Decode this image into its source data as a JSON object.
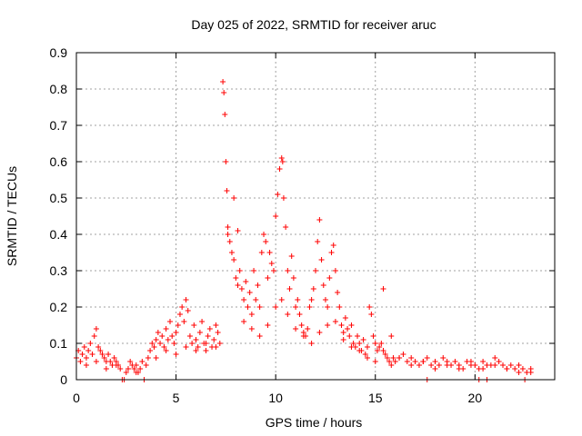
{
  "chart_data": {
    "type": "scatter",
    "title": "Day 025 of 2022, SRMTID for receiver aruc",
    "xlabel": "GPS time / hours",
    "ylabel": "SRMTID / TECUs",
    "xlim": [
      0,
      24
    ],
    "ylim": [
      0,
      0.9
    ],
    "xticks": [
      0,
      5,
      10,
      15,
      20
    ],
    "yticks": [
      0,
      0.1,
      0.2,
      0.3,
      0.4,
      0.5,
      0.6,
      0.7,
      0.8,
      0.9
    ],
    "xtick_labels": [
      "0",
      "5",
      "10",
      "15",
      "20"
    ],
    "ytick_labels": [
      "0",
      "0.1",
      "0.2",
      "0.3",
      "0.4",
      "0.5",
      "0.6",
      "0.7",
      "0.8",
      "0.9"
    ],
    "grid": true,
    "marker": "+",
    "color": "#ff0000",
    "series": [
      {
        "name": "SRMTID",
        "x": [
          0.0,
          0.1,
          0.2,
          0.3,
          0.4,
          0.5,
          0.6,
          0.7,
          0.8,
          0.9,
          1.0,
          1.1,
          1.2,
          1.3,
          1.4,
          1.5,
          1.6,
          1.7,
          1.8,
          1.9,
          2.0,
          2.1,
          2.2,
          2.5,
          2.6,
          2.7,
          2.8,
          2.9,
          3.0,
          3.1,
          3.2,
          3.3,
          3.5,
          3.6,
          3.7,
          3.8,
          3.9,
          4.0,
          4.1,
          4.2,
          4.3,
          4.4,
          4.5,
          4.6,
          4.7,
          4.8,
          4.9,
          5.0,
          5.1,
          5.2,
          5.3,
          5.4,
          5.5,
          5.6,
          5.7,
          5.8,
          5.9,
          6.0,
          6.1,
          6.2,
          6.3,
          6.4,
          6.5,
          6.6,
          6.7,
          6.8,
          6.9,
          7.0,
          7.1,
          7.2,
          7.35,
          7.4,
          7.45,
          7.5,
          7.55,
          7.6,
          7.7,
          7.8,
          7.9,
          8.0,
          8.1,
          8.2,
          8.3,
          8.4,
          8.5,
          8.6,
          8.7,
          8.8,
          8.9,
          9.0,
          9.1,
          9.2,
          9.3,
          9.4,
          9.5,
          9.6,
          9.7,
          9.8,
          9.9,
          10.0,
          10.1,
          10.2,
          10.3,
          10.35,
          10.4,
          10.5,
          10.6,
          10.7,
          10.8,
          10.9,
          11.0,
          11.1,
          11.2,
          11.3,
          11.4,
          11.5,
          11.6,
          11.7,
          11.8,
          11.9,
          12.0,
          12.1,
          12.2,
          12.3,
          12.4,
          12.5,
          12.6,
          12.7,
          12.8,
          12.9,
          13.0,
          13.1,
          13.2,
          13.3,
          13.4,
          13.5,
          13.6,
          13.7,
          13.8,
          13.9,
          14.0,
          14.1,
          14.2,
          14.3,
          14.4,
          14.5,
          14.6,
          14.7,
          14.8,
          14.9,
          15.0,
          15.1,
          15.2,
          15.3,
          15.4,
          15.5,
          15.6,
          15.7,
          15.8,
          15.9,
          16.0,
          16.2,
          16.4,
          16.6,
          16.8,
          17.0,
          17.2,
          17.4,
          17.6,
          17.8,
          18.0,
          18.2,
          18.4,
          18.6,
          18.8,
          19.0,
          19.2,
          19.4,
          19.6,
          19.8,
          20.0,
          20.2,
          20.4,
          20.6,
          20.8,
          21.0,
          21.2,
          21.4,
          21.6,
          21.8,
          22.0,
          22.2,
          22.4,
          22.6,
          22.8,
          0.5,
          1.0,
          1.5,
          2.0,
          3.0,
          4.0,
          4.5,
          5.0,
          5.5,
          6.0,
          6.5,
          7.0,
          7.6,
          7.9,
          8.1,
          8.4,
          8.8,
          9.2,
          9.6,
          10.0,
          10.3,
          10.6,
          11.0,
          11.4,
          11.8,
          12.2,
          12.6,
          13.0,
          13.4,
          13.8,
          14.2,
          14.6,
          15.0,
          15.4,
          15.8,
          16.2,
          16.8,
          17.4,
          18.0,
          18.6,
          19.2,
          19.8,
          20.4,
          21.0,
          21.6,
          22.2,
          22.8,
          2.3,
          2.4,
          3.4,
          17.6,
          20.2,
          20.6,
          22.5
        ],
        "y": [
          0.06,
          0.08,
          0.05,
          0.07,
          0.09,
          0.06,
          0.08,
          0.1,
          0.07,
          0.12,
          0.14,
          0.09,
          0.08,
          0.07,
          0.06,
          0.05,
          0.07,
          0.05,
          0.04,
          0.06,
          0.05,
          0.04,
          0.03,
          0.02,
          0.03,
          0.05,
          0.04,
          0.03,
          0.04,
          0.02,
          0.03,
          0.05,
          0.04,
          0.06,
          0.08,
          0.1,
          0.09,
          0.11,
          0.13,
          0.1,
          0.12,
          0.09,
          0.14,
          0.11,
          0.16,
          0.12,
          0.1,
          0.13,
          0.15,
          0.18,
          0.2,
          0.16,
          0.22,
          0.19,
          0.12,
          0.1,
          0.15,
          0.11,
          0.09,
          0.13,
          0.16,
          0.1,
          0.08,
          0.12,
          0.14,
          0.09,
          0.11,
          0.15,
          0.13,
          0.1,
          0.82,
          0.79,
          0.73,
          0.6,
          0.52,
          0.42,
          0.38,
          0.35,
          0.33,
          0.28,
          0.26,
          0.3,
          0.25,
          0.22,
          0.27,
          0.2,
          0.24,
          0.18,
          0.3,
          0.22,
          0.26,
          0.2,
          0.35,
          0.4,
          0.38,
          0.28,
          0.35,
          0.32,
          0.3,
          0.45,
          0.51,
          0.58,
          0.61,
          0.6,
          0.5,
          0.42,
          0.3,
          0.25,
          0.34,
          0.28,
          0.2,
          0.22,
          0.18,
          0.15,
          0.13,
          0.12,
          0.14,
          0.2,
          0.22,
          0.25,
          0.3,
          0.38,
          0.44,
          0.33,
          0.26,
          0.22,
          0.2,
          0.28,
          0.35,
          0.37,
          0.3,
          0.24,
          0.2,
          0.15,
          0.13,
          0.17,
          0.14,
          0.12,
          0.15,
          0.1,
          0.09,
          0.12,
          0.1,
          0.08,
          0.11,
          0.07,
          0.09,
          0.2,
          0.18,
          0.12,
          0.1,
          0.08,
          0.09,
          0.1,
          0.08,
          0.07,
          0.06,
          0.05,
          0.04,
          0.06,
          0.05,
          0.06,
          0.07,
          0.05,
          0.06,
          0.05,
          0.04,
          0.05,
          0.06,
          0.04,
          0.05,
          0.04,
          0.06,
          0.05,
          0.04,
          0.05,
          0.04,
          0.03,
          0.05,
          0.04,
          0.04,
          0.03,
          0.05,
          0.04,
          0.04,
          0.06,
          0.05,
          0.04,
          0.03,
          0.04,
          0.03,
          0.04,
          0.03,
          0.02,
          0.03,
          0.04,
          0.05,
          0.03,
          0.04,
          0.02,
          0.06,
          0.08,
          0.07,
          0.09,
          0.08,
          0.1,
          0.09,
          0.4,
          0.5,
          0.41,
          0.16,
          0.14,
          0.12,
          0.15,
          0.2,
          0.22,
          0.18,
          0.14,
          0.12,
          0.1,
          0.13,
          0.15,
          0.16,
          0.11,
          0.09,
          0.08,
          0.06,
          0.05,
          0.25,
          0.12,
          0.06,
          0.04,
          0.05,
          0.03,
          0.04,
          0.03,
          0.05,
          0.03,
          0.04,
          0.03,
          0.02,
          0.02,
          0.0,
          0.0,
          0.0,
          0.0,
          0.0,
          0.0,
          0.0
        ]
      }
    ]
  }
}
